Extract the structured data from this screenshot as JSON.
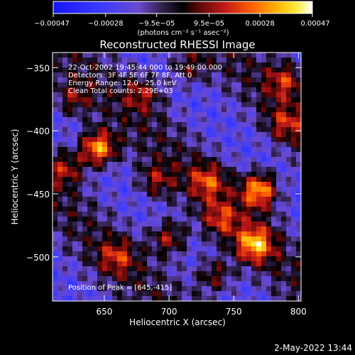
{
  "chart_data": {
    "type": "heatmap",
    "title": "Reconstructed RHESSI Image",
    "xlabel": "Heliocentric X (arcsec)",
    "ylabel": "Heliocentric Y (arcsec)",
    "xlim": [
      610,
      802
    ],
    "ylim": [
      -535,
      -338
    ],
    "x_ticks": [
      {
        "value": 650,
        "label": "650"
      },
      {
        "value": 700,
        "label": "700"
      },
      {
        "value": 750,
        "label": "750"
      },
      {
        "value": 800,
        "label": "800"
      }
    ],
    "y_ticks": [
      {
        "value": -350,
        "label": "−350"
      },
      {
        "value": -400,
        "label": "−400"
      },
      {
        "value": -450,
        "label": "−450"
      },
      {
        "value": -500,
        "label": "−500"
      }
    ],
    "colorbar": {
      "range": [
        -0.00047,
        0.00047
      ],
      "ticks": [
        {
          "value": -0.00047,
          "label": "−0.00047"
        },
        {
          "value": -0.00028,
          "label": "−0.00028"
        },
        {
          "value": -9.5e-05,
          "label": "−9.5e−05"
        },
        {
          "value": 9.5e-05,
          "label": "9.5e−05"
        },
        {
          "value": 0.00028,
          "label": "0.00028"
        },
        {
          "value": 0.00047,
          "label": "0.00047"
        }
      ],
      "unit_label": "(photons cm⁻² s⁻¹ asec⁻²)"
    },
    "info_lines": [
      "22-Oct-2002 19:45:44.000 to 19:49:00.000",
      "Detectors: 3F 4F 5F 6F 7F 8F, Att 0",
      "Energy Range: 12.0 - 25.0 keV",
      "Clean     Total counts: 2.29E+03"
    ],
    "peak_label": "Position of Peak = [645,-415]",
    "peak_position": [
      645,
      -415
    ],
    "sources": [
      {
        "x": 645,
        "y": -414,
        "amp": 1.0
      },
      {
        "x": 770,
        "y": -447,
        "amp": 0.95
      },
      {
        "x": 766,
        "y": -490,
        "amp": 0.85
      },
      {
        "x": 730,
        "y": -440,
        "amp": 0.55
      },
      {
        "x": 700,
        "y": -485,
        "amp": 0.6
      },
      {
        "x": 660,
        "y": -500,
        "amp": 0.45
      },
      {
        "x": 620,
        "y": -430,
        "amp": 0.5
      },
      {
        "x": 680,
        "y": -370,
        "amp": 0.45
      },
      {
        "x": 715,
        "y": -350,
        "amp": 0.4
      },
      {
        "x": 790,
        "y": -360,
        "amp": 0.5
      },
      {
        "x": 790,
        "y": -395,
        "amp": 0.45
      },
      {
        "x": 735,
        "y": -515,
        "amp": 0.5
      },
      {
        "x": 625,
        "y": -375,
        "amp": 0.4
      },
      {
        "x": 690,
        "y": -440,
        "amp": 0.45
      },
      {
        "x": 740,
        "y": -470,
        "amp": 0.5
      }
    ]
  },
  "footer": {
    "timestamp": "2-May-2022 13:44"
  },
  "colors": {
    "background": "#000000",
    "text": "#ffffff"
  }
}
